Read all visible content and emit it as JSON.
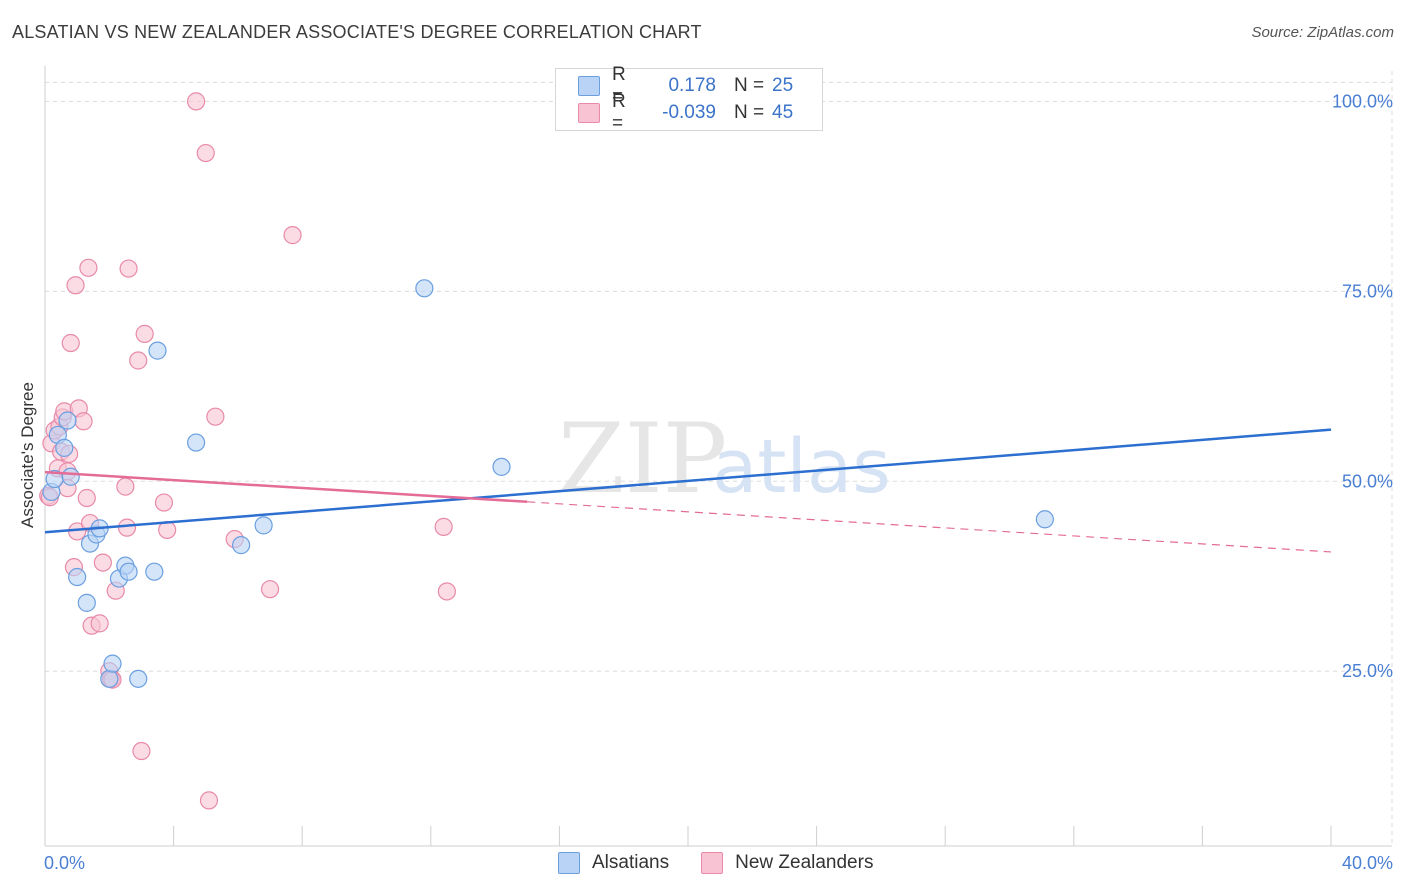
{
  "header": {
    "title": "ALSATIAN VS NEW ZEALANDER ASSOCIATE'S DEGREE CORRELATION CHART",
    "source": "Source: ZipAtlas.com"
  },
  "legend": {
    "rows": [
      {
        "r_label": "R =",
        "r_value": "0.178",
        "n_label": "N =",
        "n_value": "25"
      },
      {
        "r_label": "R =",
        "r_value": "-0.039",
        "n_label": "N =",
        "n_value": "45"
      }
    ],
    "bottom": [
      "Alsatians",
      "New Zealanders"
    ]
  },
  "colors": {
    "blue_fill": "#b8d3f5",
    "blue_stroke": "#6b9fe0",
    "blue_line": "#2d6fd0",
    "pink_fill": "#f8c4d4",
    "pink_stroke": "#e88aa8",
    "pink_line": "#e46c97"
  },
  "watermark": {
    "zip": "ZIP",
    "atlas": "atlas"
  },
  "chart_data": {
    "type": "scatter",
    "title": "ALSATIAN VS NEW ZEALANDER ASSOCIATE'S DEGREE CORRELATION CHART",
    "xlabel": "",
    "ylabel": "Associate's Degree",
    "xlim": [
      0,
      40
    ],
    "ylim": [
      2,
      104
    ],
    "x_tick_labels": [
      "0.0%",
      "40.0%"
    ],
    "y_ticks": [
      25,
      50,
      75,
      100
    ],
    "y_tick_labels": [
      "25.0%",
      "50.0%",
      "75.0%",
      "100.0%"
    ],
    "grid": true,
    "series": [
      {
        "name": "Alsatians",
        "R": 0.178,
        "N": 25,
        "trend": {
          "x0": 0,
          "y0": 43.3,
          "x1": 40,
          "y1": 56.8
        },
        "points": [
          [
            0.2,
            48.6
          ],
          [
            0.3,
            50.3
          ],
          [
            0.4,
            56.1
          ],
          [
            0.6,
            54.4
          ],
          [
            0.7,
            58.0
          ],
          [
            0.8,
            50.6
          ],
          [
            1.0,
            37.4
          ],
          [
            1.4,
            41.8
          ],
          [
            1.3,
            34.0
          ],
          [
            1.6,
            43.0
          ],
          [
            1.7,
            43.8
          ],
          [
            2.0,
            24.0
          ],
          [
            2.1,
            26.0
          ],
          [
            2.3,
            37.2
          ],
          [
            2.5,
            38.9
          ],
          [
            2.6,
            38.1
          ],
          [
            2.9,
            24.0
          ],
          [
            3.4,
            38.1
          ],
          [
            3.5,
            67.2
          ],
          [
            4.7,
            55.1
          ],
          [
            6.1,
            41.6
          ],
          [
            6.8,
            44.2
          ],
          [
            11.8,
            75.4
          ],
          [
            14.2,
            51.9
          ],
          [
            31.1,
            45.0
          ]
        ]
      },
      {
        "name": "New Zealanders",
        "R": -0.039,
        "N": 45,
        "trend": {
          "x0": 0,
          "y0": 51.2,
          "x1": 15,
          "y1": 47.3
        },
        "trend_dashed": {
          "x0": 15,
          "y0": 47.3,
          "x1": 40,
          "y1": 40.7
        },
        "points": [
          [
            0.1,
            48.1
          ],
          [
            0.15,
            47.9
          ],
          [
            0.2,
            55.0
          ],
          [
            0.3,
            56.7
          ],
          [
            0.4,
            51.7
          ],
          [
            0.45,
            57.2
          ],
          [
            0.5,
            53.9
          ],
          [
            0.55,
            58.4
          ],
          [
            0.6,
            59.2
          ],
          [
            0.7,
            51.3
          ],
          [
            0.7,
            49.1
          ],
          [
            0.75,
            53.6
          ],
          [
            0.8,
            68.2
          ],
          [
            0.9,
            38.7
          ],
          [
            0.95,
            75.8
          ],
          [
            1.0,
            43.4
          ],
          [
            1.05,
            59.6
          ],
          [
            1.2,
            57.9
          ],
          [
            1.3,
            47.8
          ],
          [
            1.35,
            78.1
          ],
          [
            1.4,
            44.5
          ],
          [
            1.45,
            31.0
          ],
          [
            1.7,
            31.3
          ],
          [
            1.8,
            39.3
          ],
          [
            2.0,
            25.0
          ],
          [
            2.05,
            24.0
          ],
          [
            2.1,
            23.9
          ],
          [
            2.2,
            35.6
          ],
          [
            2.5,
            49.3
          ],
          [
            2.55,
            43.9
          ],
          [
            2.6,
            78.0
          ],
          [
            2.9,
            65.9
          ],
          [
            3.0,
            14.5
          ],
          [
            3.1,
            69.4
          ],
          [
            3.7,
            47.2
          ],
          [
            3.8,
            43.6
          ],
          [
            4.7,
            100.0
          ],
          [
            5.0,
            93.2
          ],
          [
            5.1,
            8.0
          ],
          [
            5.3,
            58.5
          ],
          [
            5.9,
            42.4
          ],
          [
            7.0,
            35.8
          ],
          [
            7.7,
            82.4
          ],
          [
            12.4,
            44.0
          ],
          [
            12.5,
            35.5
          ]
        ]
      }
    ]
  }
}
